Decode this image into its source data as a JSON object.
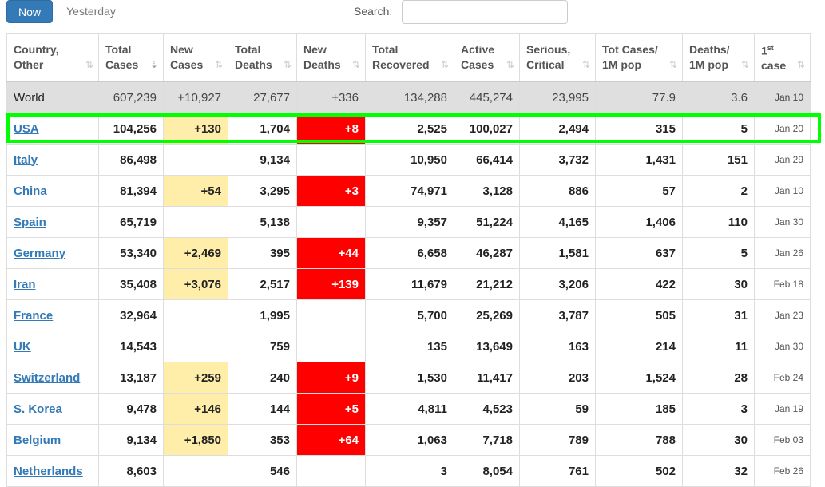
{
  "toolbar": {
    "now_label": "Now",
    "yesterday_label": "Yesterday",
    "search_label": "Search:",
    "search_value": ""
  },
  "headers": [
    {
      "l1": "Country,",
      "l2": "Other"
    },
    {
      "l1": "Total",
      "l2": "Cases"
    },
    {
      "l1": "New",
      "l2": "Cases"
    },
    {
      "l1": "Total",
      "l2": "Deaths"
    },
    {
      "l1": "New",
      "l2": "Deaths"
    },
    {
      "l1": "Total",
      "l2": "Recovered"
    },
    {
      "l1": "Active",
      "l2": "Cases"
    },
    {
      "l1": "Serious,",
      "l2": "Critical"
    },
    {
      "l1": "Tot Cases/",
      "l2": "1M pop"
    },
    {
      "l1": "Deaths/",
      "l2": "1M pop"
    },
    {
      "l1": "1",
      "sup": "st",
      "l2": "case"
    }
  ],
  "sort_icon": "⇅",
  "sort_active_icon": "⇣",
  "world": [
    "World",
    "607,239",
    "+10,927",
    "27,677",
    "+336",
    "134,288",
    "445,274",
    "23,995",
    "77.9",
    "3.6",
    "Jan 10"
  ],
  "rows": [
    [
      "USA",
      "104,256",
      "+130",
      "1,704",
      "+8",
      "2,525",
      "100,027",
      "2,494",
      "315",
      "5",
      "Jan 20"
    ],
    [
      "Italy",
      "86,498",
      "",
      "9,134",
      "",
      "10,950",
      "66,414",
      "3,732",
      "1,431",
      "151",
      "Jan 29"
    ],
    [
      "China",
      "81,394",
      "+54",
      "3,295",
      "+3",
      "74,971",
      "3,128",
      "886",
      "57",
      "2",
      "Jan 10"
    ],
    [
      "Spain",
      "65,719",
      "",
      "5,138",
      "",
      "9,357",
      "51,224",
      "4,165",
      "1,406",
      "110",
      "Jan 30"
    ],
    [
      "Germany",
      "53,340",
      "+2,469",
      "395",
      "+44",
      "6,658",
      "46,287",
      "1,581",
      "637",
      "5",
      "Jan 26"
    ],
    [
      "Iran",
      "35,408",
      "+3,076",
      "2,517",
      "+139",
      "11,679",
      "21,212",
      "3,206",
      "422",
      "30",
      "Feb 18"
    ],
    [
      "France",
      "32,964",
      "",
      "1,995",
      "",
      "5,700",
      "25,269",
      "3,787",
      "505",
      "31",
      "Jan 23"
    ],
    [
      "UK",
      "14,543",
      "",
      "759",
      "",
      "135",
      "13,649",
      "163",
      "214",
      "11",
      "Jan 30"
    ],
    [
      "Switzerland",
      "13,187",
      "+259",
      "240",
      "+9",
      "1,530",
      "11,417",
      "203",
      "1,524",
      "28",
      "Feb 24"
    ],
    [
      "S. Korea",
      "9,478",
      "+146",
      "144",
      "+5",
      "4,811",
      "4,523",
      "59",
      "185",
      "3",
      "Jan 19"
    ],
    [
      "Belgium",
      "9,134",
      "+1,850",
      "353",
      "+64",
      "1,063",
      "7,718",
      "789",
      "788",
      "30",
      "Feb 03"
    ],
    [
      "Netherlands",
      "8,603",
      "",
      "546",
      "",
      "3",
      "8,054",
      "761",
      "502",
      "32",
      "Feb 26"
    ]
  ],
  "colors": {
    "new_cases_bg": "#ffeeaa",
    "new_deaths_bg": "#ff0000",
    "highlight": "#00ff00",
    "link": "#337ab7"
  }
}
